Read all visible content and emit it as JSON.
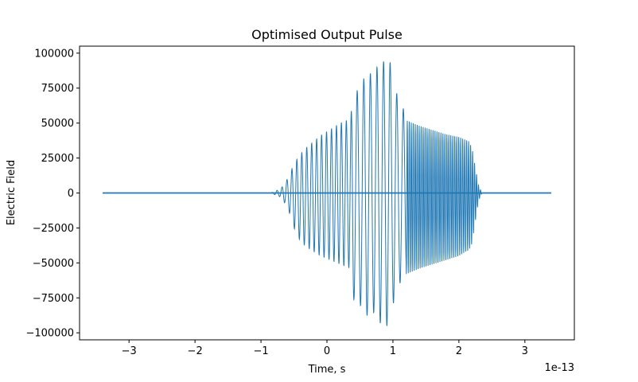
{
  "chart_data": {
    "type": "line",
    "title": "Optimised Output Pulse",
    "xlabel": "Time, s",
    "ylabel": "Electric Field",
    "x_offset_label": "1e-13",
    "x_scale": 1e-13,
    "xlim": [
      -3.75,
      3.75
    ],
    "ylim": [
      -105000,
      105000
    ],
    "xticks": [
      -3,
      -2,
      -1,
      0,
      1,
      2,
      3
    ],
    "xtick_labels": [
      "−3",
      "−2",
      "−1",
      "0",
      "1",
      "2",
      "3"
    ],
    "yticks": [
      100000,
      75000,
      50000,
      25000,
      0,
      -25000,
      -50000,
      -75000,
      -100000
    ],
    "ytick_labels": [
      "100000",
      "75000",
      "50000",
      "25000",
      "0",
      "−25000",
      "−50000",
      "−75000",
      "−100000"
    ],
    "grid": false,
    "legend": "none",
    "color": "#1f77b4",
    "series": [
      {
        "x_range": [
          -3.4,
          3.4
        ],
        "envelope": {
          "x": [
            -3.4,
            -0.85,
            -0.7,
            -0.6,
            -0.55,
            -0.5,
            -0.4,
            -0.3,
            -0.2,
            -0.1,
            0.0,
            0.1,
            0.2,
            0.3,
            0.35,
            0.4,
            0.5,
            0.6,
            0.7,
            0.8,
            0.9,
            0.95,
            1.0,
            1.1,
            1.15,
            1.2,
            1.4,
            1.6,
            1.8,
            2.0,
            2.1,
            2.15,
            2.2,
            2.25,
            2.3,
            2.35,
            2.4,
            3.4
          ],
          "upper": [
            0,
            0,
            3000,
            10000,
            15000,
            21000,
            28000,
            33000,
            37000,
            41000,
            44000,
            47000,
            50000,
            52000,
            53000,
            68000,
            77000,
            85000,
            86000,
            93000,
            95000,
            96000,
            80000,
            65000,
            62000,
            52000,
            48000,
            45000,
            42000,
            40000,
            38000,
            37000,
            32000,
            18000,
            5000,
            0,
            0,
            0
          ],
          "lower": [
            0,
            0,
            -3000,
            -10000,
            -17000,
            -25000,
            -35000,
            -39000,
            -42000,
            -45000,
            -47000,
            -49000,
            -51000,
            -53000,
            -54000,
            -76000,
            -80000,
            -88000,
            -85000,
            -93000,
            -95000,
            -96000,
            -80000,
            -65000,
            -62000,
            -58000,
            -54000,
            -51000,
            -48000,
            -45000,
            -42000,
            -41000,
            -36000,
            -20000,
            -5000,
            0,
            0,
            0
          ]
        },
        "oscillation_period_by_region": [
          {
            "from": -1.0,
            "to": 0.4,
            "period": 0.075
          },
          {
            "from": 0.4,
            "to": 1.2,
            "period": 0.1
          },
          {
            "from": 1.2,
            "to": 2.4,
            "period": 0.03
          }
        ]
      }
    ]
  }
}
